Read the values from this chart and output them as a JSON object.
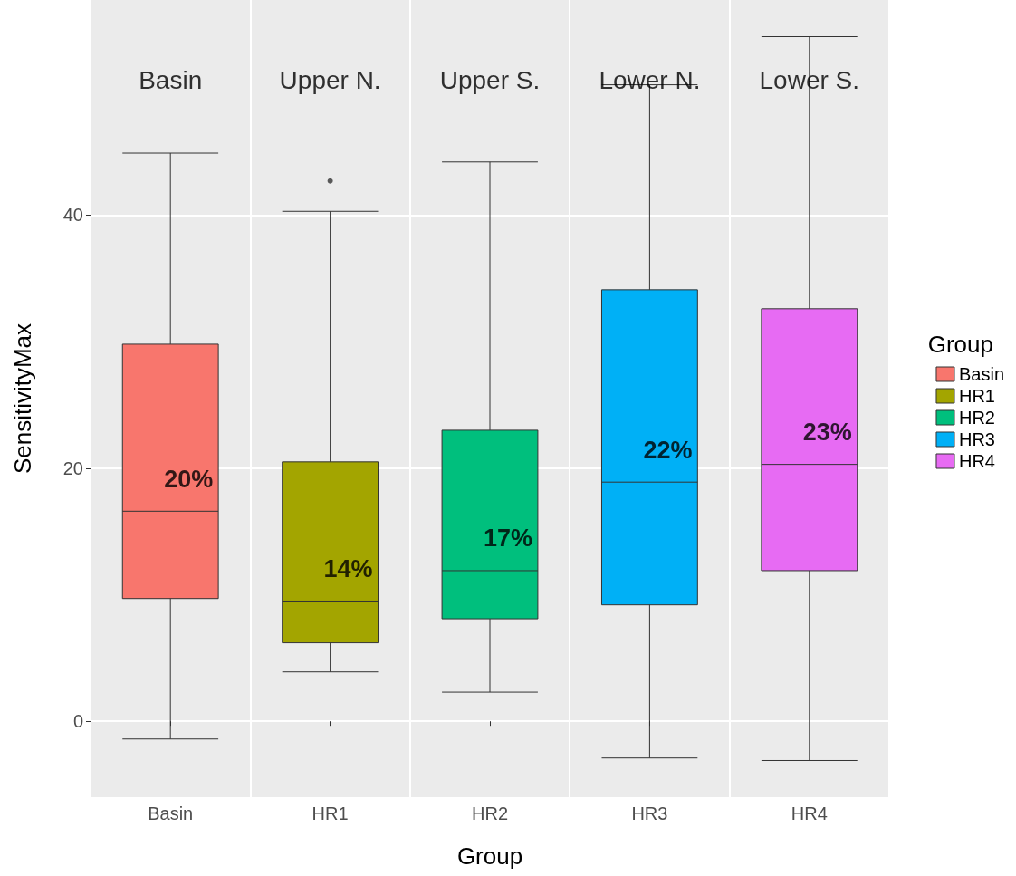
{
  "chart_data": {
    "type": "box",
    "xlabel": "Group",
    "ylabel": "SensitivityMax",
    "legend_title": "Group",
    "legend": "right",
    "grid": true,
    "categories": [
      "Basin",
      "HR1",
      "HR2",
      "HR3",
      "HR4"
    ],
    "series": [
      {
        "name": "Basin",
        "color": "#f8766d",
        "boxes": [
          {
            "low": -1.4,
            "q1": 9.7,
            "median": 16.6,
            "q3": 29.8,
            "high": 44.9
          },
          null,
          null,
          null,
          null
        ]
      },
      {
        "name": "HR1",
        "color": "#a3a500",
        "boxes": [
          null,
          {
            "low": 3.9,
            "q1": 6.2,
            "median": 9.5,
            "q3": 20.5,
            "high": 40.3,
            "outliers": [
              42.7
            ]
          },
          null,
          null,
          null
        ]
      },
      {
        "name": "HR2",
        "color": "#00bf7d",
        "boxes": [
          null,
          null,
          {
            "low": 2.3,
            "q1": 8.1,
            "median": 11.9,
            "q3": 23.0,
            "high": 44.2
          },
          null,
          null
        ]
      },
      {
        "name": "HR3",
        "color": "#00b0f6",
        "boxes": [
          null,
          null,
          null,
          {
            "low": -2.9,
            "q1": 9.2,
            "median": 18.9,
            "q3": 34.1,
            "high": 50.3
          },
          null
        ]
      },
      {
        "name": "HR4",
        "color": "#e76bf3",
        "boxes": [
          null,
          null,
          null,
          null,
          {
            "low": -3.1,
            "q1": 11.9,
            "median": 20.3,
            "q3": 32.6,
            "high": 54.1
          }
        ]
      }
    ],
    "ylim": [
      -6,
      57
    ],
    "yticks": [
      0,
      20,
      40
    ],
    "annotations": [
      "Basin",
      "Upper N.",
      "Upper S.",
      "Lower N.",
      "Lower S.",
      "20%",
      "14%",
      "17%",
      "22%",
      "23%"
    ]
  }
}
